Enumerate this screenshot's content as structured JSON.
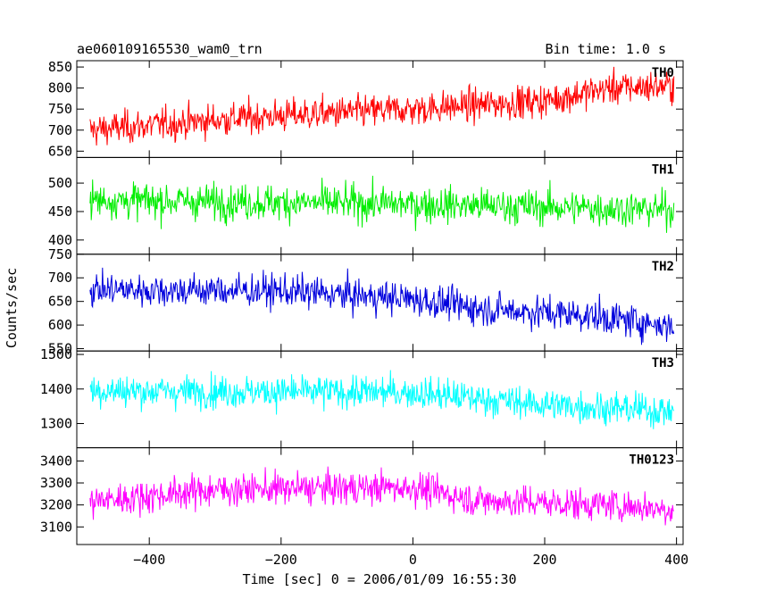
{
  "chart_data": {
    "type": "line",
    "title_left": "ae060109165530_wam0_trn",
    "title_right": "Bin time: 1.0 s",
    "xlabel": "Time [sec] 0 = 2006/01/09 16:55:30",
    "ylabel": "Counts/sec",
    "xlim": [
      -510,
      410
    ],
    "x_ticks": [
      -400,
      -200,
      0,
      200,
      400
    ],
    "x_tick_labels": [
      "−400",
      "−200",
      "0",
      "200",
      "400"
    ],
    "x_range": [
      -490,
      396
    ],
    "bin_time": 1.0,
    "grid": false,
    "panels": [
      {
        "name": "TH0",
        "color": "#ff0000",
        "ylim": [
          635,
          865
        ],
        "yticks": [
          650,
          700,
          750,
          800,
          850
        ],
        "trend": [
          [
            -490,
            700
          ],
          [
            -250,
            730
          ],
          [
            0,
            750
          ],
          [
            200,
            770
          ],
          [
            300,
            800
          ],
          [
            396,
            805
          ]
        ],
        "noise": 50,
        "clip_min": 630,
        "clip_max": 865
      },
      {
        "name": "TH1",
        "color": "#00ee00",
        "ylim": [
          375,
          545
        ],
        "yticks": [
          400,
          450,
          500
        ],
        "trend": [
          [
            -490,
            470
          ],
          [
            0,
            463
          ],
          [
            396,
            453
          ]
        ],
        "noise": 40,
        "clip_min": 375,
        "clip_max": 545
      },
      {
        "name": "TH2",
        "color": "#0000dd",
        "ylim": [
          545,
          750
        ],
        "yticks": [
          550,
          600,
          650,
          700,
          750
        ],
        "trend": [
          [
            -490,
            675
          ],
          [
            -200,
            672
          ],
          [
            0,
            655
          ],
          [
            100,
            635
          ],
          [
            250,
            622
          ],
          [
            396,
            598
          ]
        ],
        "noise": 45,
        "clip_min": 545,
        "clip_max": 750
      },
      {
        "name": "TH3",
        "color": "#00ffff",
        "ylim": [
          1230,
          1510
        ],
        "yticks": [
          1300,
          1400,
          1500
        ],
        "trend": [
          [
            -490,
            1395
          ],
          [
            0,
            1390
          ],
          [
            200,
            1355
          ],
          [
            396,
            1335
          ]
        ],
        "noise": 60,
        "clip_min": 1230,
        "clip_max": 1510
      },
      {
        "name": "TH0123",
        "color": "#ff00ff",
        "ylim": [
          3020,
          3460
        ],
        "yticks": [
          3100,
          3200,
          3300,
          3400
        ],
        "trend": [
          [
            -490,
            3215
          ],
          [
            -300,
            3270
          ],
          [
            0,
            3280
          ],
          [
            100,
            3220
          ],
          [
            300,
            3200
          ],
          [
            396,
            3180
          ]
        ],
        "noise": 95,
        "clip_min": 3010,
        "clip_max": 3460
      }
    ]
  }
}
